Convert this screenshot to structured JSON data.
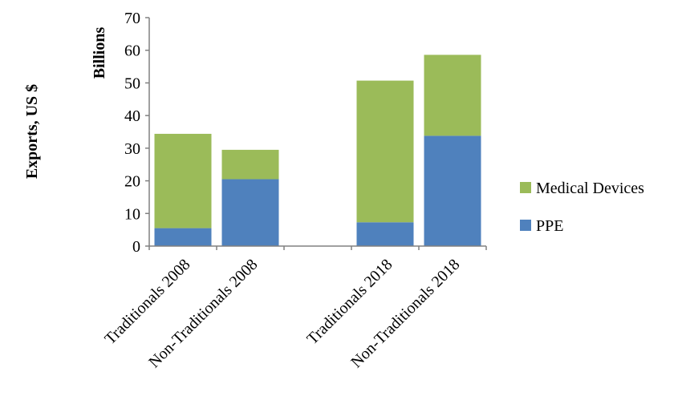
{
  "chart_data": {
    "type": "bar",
    "stacked": true,
    "title": "",
    "ylabel": "Exports, US $",
    "yunit": "Billions",
    "xlabel": "",
    "categories": [
      "Traditionals 2008",
      "Non-Traditionals 2008",
      "",
      "Traditionals 2018",
      "Non-Traditionals 2018"
    ],
    "series": [
      {
        "name": "PPE",
        "color": "#4f81bd",
        "values": [
          5.5,
          20.5,
          null,
          7.3,
          33.8
        ]
      },
      {
        "name": "Medical Devices",
        "color": "#9bbb59",
        "values": [
          28.9,
          9.0,
          null,
          43.4,
          24.8
        ]
      }
    ],
    "ylim": [
      0,
      70
    ],
    "yticks": [
      0,
      10,
      20,
      30,
      40,
      50,
      60,
      70
    ],
    "grid": false,
    "legend": "right"
  }
}
